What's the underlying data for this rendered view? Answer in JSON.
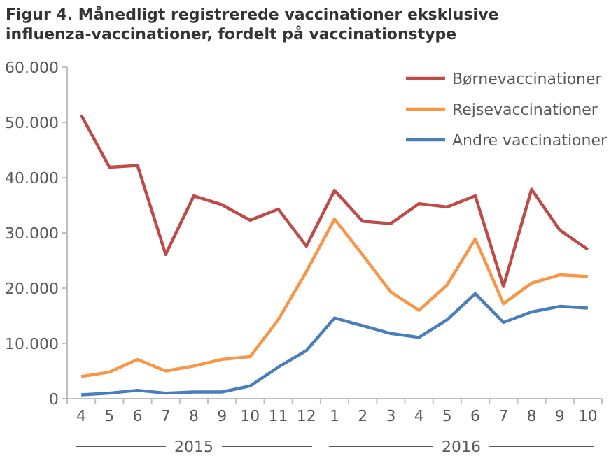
{
  "chart_data": {
    "type": "line",
    "title": "Figur 4. Månedligt registrerede vaccinationer eksklusive influenza-vaccinationer, fordelt på vaccinationstype",
    "categories": [
      "4",
      "5",
      "6",
      "7",
      "8",
      "9",
      "10",
      "11",
      "12",
      "1",
      "2",
      "3",
      "4",
      "5",
      "6",
      "7",
      "8",
      "9",
      "10"
    ],
    "series": [
      {
        "name": "Børnevaccinationer",
        "color": "#be4b48",
        "values": [
          51300,
          41900,
          42200,
          26100,
          36700,
          35100,
          32300,
          34300,
          27600,
          37700,
          32100,
          31700,
          35300,
          34700,
          36700,
          20300,
          37900,
          30500,
          27000
        ]
      },
      {
        "name": "Rejsevaccinationer",
        "color": "#f79646",
        "values": [
          4000,
          4800,
          7100,
          5000,
          5900,
          7100,
          7600,
          14300,
          23000,
          32500,
          26000,
          19300,
          16000,
          20600,
          28900,
          17200,
          20900,
          22400,
          22100
        ]
      },
      {
        "name": "Andre vaccinationer",
        "color": "#4a7ebb",
        "values": [
          700,
          1000,
          1500,
          1000,
          1200,
          1200,
          2300,
          5700,
          8700,
          14600,
          13200,
          11800,
          11100,
          14300,
          19000,
          13800,
          15700,
          16700,
          16400
        ]
      }
    ],
    "ylim": [
      0,
      60000
    ],
    "yticks": [
      0,
      {
        "value": 10000,
        "label": "10.000"
      },
      {
        "value": 20000,
        "label": "20.000"
      },
      {
        "value": 30000,
        "label": "30.000"
      },
      {
        "value": 40000,
        "label": "40.000"
      },
      {
        "value": 50000,
        "label": "50.000"
      },
      {
        "value": 60000,
        "label": "60.000"
      }
    ],
    "annotations": [
      "2015",
      "2016"
    ],
    "legend": "top right",
    "grid": false,
    "line_style": "solid"
  }
}
